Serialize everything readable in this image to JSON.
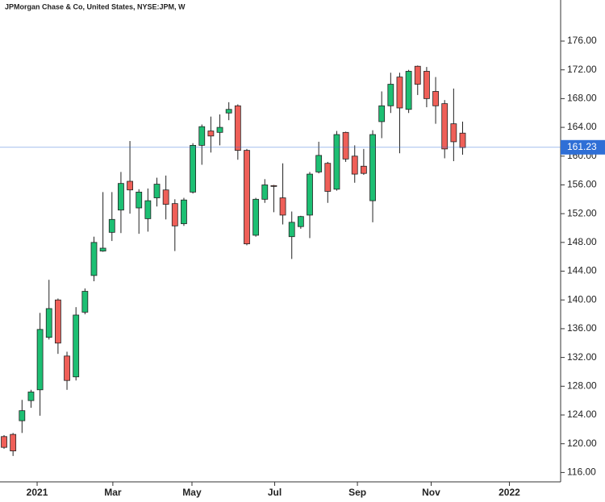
{
  "chart_data": {
    "type": "candlestick",
    "title": "JPMorgan Chase & Co, United States, NYSE:JPM, W",
    "up_color": "#1dbf73",
    "down_color": "#ef5f58",
    "edge_color": "#222222",
    "x": [
      0,
      1,
      2,
      3,
      4,
      5,
      6,
      7,
      8,
      9,
      10,
      11,
      12,
      13,
      14,
      15,
      16,
      17,
      18,
      19,
      20,
      21,
      22,
      23,
      24,
      25,
      26,
      27,
      28,
      29,
      30,
      31,
      32,
      33,
      34,
      35,
      36,
      37,
      38,
      39,
      40,
      41,
      42,
      43,
      44,
      45,
      46,
      47,
      48,
      49,
      50,
      51
    ],
    "open": [
      121.0,
      121.3,
      123.2,
      126.0,
      127.5,
      134.8,
      140.0,
      132.2,
      129.3,
      138.3,
      143.4,
      146.8,
      149.4,
      152.5,
      156.5,
      152.8,
      151.3,
      154.2,
      155.3,
      153.4,
      150.6,
      155.0,
      161.5,
      163.5,
      163.3,
      166.0,
      167.0,
      160.8,
      149.0,
      154.0,
      155.9,
      154.2,
      148.8,
      150.2,
      151.8,
      157.8,
      159.0,
      155.4,
      163.3,
      160.0,
      158.6,
      153.8,
      164.8,
      167.0,
      171.0,
      166.5,
      172.5,
      171.8,
      169.0,
      167.3,
      164.5,
      163.2
    ],
    "high": [
      121.2,
      121.5,
      126.1,
      127.5,
      138.2,
      142.8,
      140.2,
      132.8,
      139.0,
      141.6,
      148.8,
      155.0,
      155.0,
      157.8,
      162.1,
      155.4,
      155.5,
      157.0,
      157.3,
      154.0,
      154.2,
      161.8,
      164.4,
      165.5,
      165.8,
      167.5,
      167.2,
      161.0,
      154.2,
      156.8,
      156.0,
      159.0,
      152.3,
      151.7,
      157.8,
      162.0,
      159.2,
      163.5,
      163.4,
      161.5,
      161.0,
      163.6,
      169.0,
      171.6,
      171.6,
      172.0,
      172.6,
      172.4,
      171.0,
      167.8,
      169.4,
      164.8
    ],
    "low": [
      119.3,
      118.3,
      121.5,
      125.0,
      123.9,
      134.5,
      132.5,
      127.5,
      128.8,
      138.0,
      142.6,
      146.7,
      148.2,
      149.3,
      152.0,
      149.2,
      149.5,
      153.0,
      151.2,
      146.8,
      150.3,
      154.8,
      158.8,
      160.5,
      161.5,
      165.0,
      159.5,
      147.6,
      148.8,
      153.5,
      152.2,
      150.5,
      145.7,
      149.9,
      148.6,
      157.6,
      153.5,
      155.2,
      159.2,
      156.3,
      157.4,
      150.8,
      162.5,
      166.0,
      160.4,
      166.0,
      168.5,
      166.8,
      164.5,
      159.7,
      159.3,
      160.2
    ],
    "close": [
      119.5,
      119.0,
      124.6,
      127.2,
      135.9,
      138.8,
      134.0,
      128.8,
      137.9,
      141.2,
      148.0,
      147.2,
      151.2,
      156.2,
      155.3,
      155.0,
      153.8,
      156.1,
      153.3,
      150.3,
      153.9,
      161.5,
      164.1,
      162.8,
      164.0,
      166.5,
      160.8,
      147.8,
      154.0,
      156.0,
      155.8,
      151.8,
      150.8,
      151.6,
      157.5,
      160.1,
      155.1,
      163.0,
      159.6,
      157.5,
      157.6,
      163.0,
      167.0,
      170.0,
      166.7,
      171.8,
      170.0,
      168.0,
      167.0,
      161.0,
      162.0,
      161.2
    ],
    "xlim": [
      -0.45,
      61.9
    ],
    "xticks": [
      {
        "value": 3.68,
        "label": "2021"
      },
      {
        "value": 12.1,
        "label": "Mar"
      },
      {
        "value": 20.9,
        "label": "May"
      },
      {
        "value": 30.1,
        "label": "Jul"
      },
      {
        "value": 39.3,
        "label": "Sep"
      },
      {
        "value": 47.5,
        "label": "Nov"
      },
      {
        "value": 56.2,
        "label": "2022"
      }
    ],
    "ylim": [
      114.7,
      180
    ],
    "yticks": [
      {
        "value": 116,
        "label": "116.00"
      },
      {
        "value": 120,
        "label": "120.00"
      },
      {
        "value": 124,
        "label": "124.00"
      },
      {
        "value": 128,
        "label": "128.00"
      },
      {
        "value": 132,
        "label": "132.00"
      },
      {
        "value": 136,
        "label": "136.00"
      },
      {
        "value": 140,
        "label": "140.00"
      },
      {
        "value": 144,
        "label": "144.00"
      },
      {
        "value": 148,
        "label": "148.00"
      },
      {
        "value": 152,
        "label": "152.00"
      },
      {
        "value": 156,
        "label": "156.00"
      },
      {
        "value": 160,
        "label": "160.00"
      },
      {
        "value": 164,
        "label": "164.00"
      },
      {
        "value": 168,
        "label": "168.00"
      },
      {
        "value": 172,
        "label": "172.00"
      },
      {
        "value": 176,
        "label": "176.00"
      }
    ],
    "last_price": 161.23,
    "last_price_color": "#2f6fd6"
  }
}
